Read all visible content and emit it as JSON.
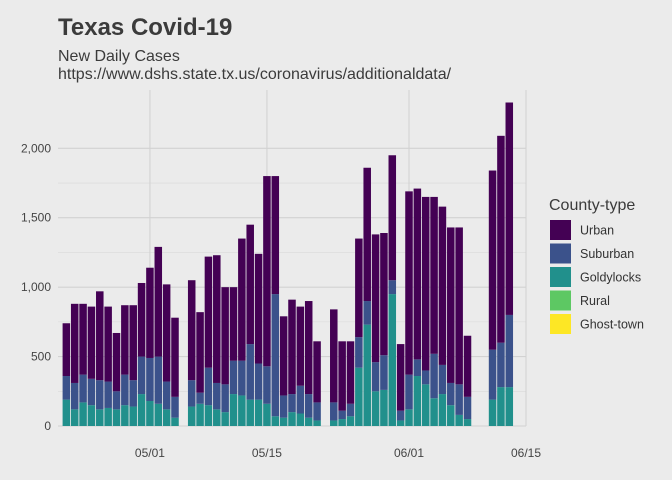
{
  "chart_data": {
    "type": "bar",
    "stacked": true,
    "title": "Texas Covid-19",
    "subtitle": "New Daily Cases",
    "source": "https://www.dshs.state.tx.us/coronavirus/additionaldata/",
    "xlabel": "",
    "ylabel": "",
    "x_ticks": [
      {
        "date": "2020-05-01",
        "label": "05/01"
      },
      {
        "date": "2020-05-15",
        "label": "05/15"
      },
      {
        "date": "2020-06-01",
        "label": "06/01"
      },
      {
        "date": "2020-06-15",
        "label": "06/15"
      }
    ],
    "y_ticks": [
      {
        "value": 0,
        "label": "0"
      },
      {
        "value": 500,
        "label": "500"
      },
      {
        "value": 1000,
        "label": "1,000"
      },
      {
        "value": 1500,
        "label": "1,500"
      },
      {
        "value": 2000,
        "label": "2,000"
      }
    ],
    "xlim": [
      "2020-04-20",
      "2020-06-15"
    ],
    "ylim": [
      0,
      2420
    ],
    "grid": true,
    "legend": {
      "title": "County-type",
      "position": "right"
    },
    "colors": {
      "Urban": "#440154",
      "Suburban": "#3b528b",
      "Goldylocks": "#21908c",
      "Rural": "#5dc863",
      "Ghost-town": "#fde725"
    },
    "x": [
      "2020-04-21",
      "2020-04-22",
      "2020-04-23",
      "2020-04-24",
      "2020-04-25",
      "2020-04-26",
      "2020-04-27",
      "2020-04-28",
      "2020-04-29",
      "2020-04-30",
      "2020-05-01",
      "2020-05-02",
      "2020-05-03",
      "2020-05-04",
      "2020-05-05",
      "2020-05-06",
      "2020-05-07",
      "2020-05-08",
      "2020-05-09",
      "2020-05-10",
      "2020-05-11",
      "2020-05-12",
      "2020-05-13",
      "2020-05-14",
      "2020-05-15",
      "2020-05-16",
      "2020-05-17",
      "2020-05-18",
      "2020-05-19",
      "2020-05-20",
      "2020-05-21",
      "2020-05-22",
      "2020-05-23",
      "2020-05-24",
      "2020-05-25",
      "2020-05-26",
      "2020-05-27",
      "2020-05-28",
      "2020-05-29",
      "2020-05-30",
      "2020-05-31",
      "2020-06-01",
      "2020-06-02",
      "2020-06-03",
      "2020-06-04",
      "2020-06-05",
      "2020-06-06",
      "2020-06-07",
      "2020-06-08",
      "2020-06-09",
      "2020-06-10",
      "2020-06-11",
      "2020-06-12",
      "2020-06-13"
    ],
    "series": [
      {
        "name": "Goldylocks",
        "values": [
          190,
          120,
          170,
          150,
          120,
          130,
          120,
          150,
          140,
          230,
          180,
          160,
          120,
          60,
          0,
          140,
          160,
          150,
          120,
          100,
          230,
          220,
          190,
          190,
          160,
          70,
          60,
          100,
          90,
          60,
          40,
          0,
          40,
          50,
          70,
          420,
          730,
          250,
          260,
          950,
          40,
          120,
          360,
          300,
          200,
          230,
          150,
          80,
          50,
          0,
          0,
          190,
          280,
          280
        ]
      },
      {
        "name": "Suburban",
        "values": [
          170,
          190,
          200,
          190,
          210,
          190,
          130,
          220,
          190,
          270,
          310,
          340,
          200,
          150,
          0,
          190,
          80,
          270,
          190,
          200,
          240,
          250,
          400,
          260,
          270,
          880,
          160,
          130,
          200,
          170,
          130,
          0,
          130,
          60,
          90,
          220,
          170,
          210,
          250,
          100,
          70,
          250,
          120,
          100,
          320,
          210,
          160,
          220,
          160,
          0,
          0,
          360,
          320,
          520
        ]
      },
      {
        "name": "Urban",
        "values": [
          380,
          570,
          510,
          520,
          640,
          540,
          420,
          500,
          540,
          530,
          650,
          790,
          700,
          570,
          0,
          720,
          580,
          800,
          920,
          700,
          530,
          880,
          860,
          790,
          1370,
          850,
          570,
          680,
          570,
          670,
          440,
          0,
          670,
          500,
          450,
          710,
          960,
          920,
          880,
          900,
          480,
          1320,
          1230,
          1250,
          1130,
          1140,
          1120,
          1130,
          440,
          0,
          0,
          1290,
          1490,
          1530
        ]
      }
    ]
  }
}
